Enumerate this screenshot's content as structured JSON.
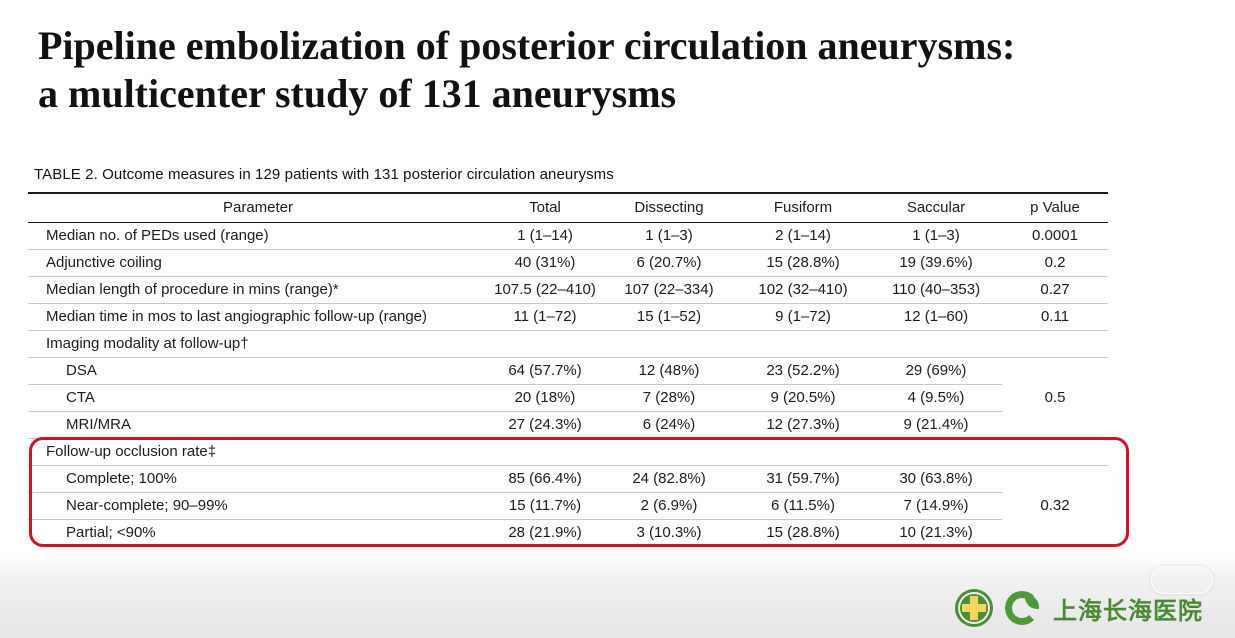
{
  "slide": {
    "title_line1": "Pipeline embolization of posterior circulation aneurysms:",
    "title_line2": "a multicenter study of 131 aneurysms"
  },
  "table": {
    "caption": "TABLE 2. Outcome measures in 129 patients with 131 posterior circulation aneurysms",
    "headers": [
      "Parameter",
      "Total",
      "Dissecting",
      "Fusiform",
      "Saccular",
      "p Value"
    ],
    "rows": [
      {
        "label": "Median no. of PEDs used (range)",
        "total": "1 (1–14)",
        "dissecting": "1 (1–3)",
        "fusiform": "2 (1–14)",
        "saccular": "1 (1–3)",
        "p": "0.0001"
      },
      {
        "label": "Adjunctive coiling",
        "total": "40 (31%)",
        "dissecting": "6 (20.7%)",
        "fusiform": "15 (28.8%)",
        "saccular": "19 (39.6%)",
        "p": "0.2"
      },
      {
        "label": "Median length of procedure in mins (range)*",
        "total": "107.5 (22–410)",
        "dissecting": "107 (22–334)",
        "fusiform": "102 (32–410)",
        "saccular": "110 (40–353)",
        "p": "0.27"
      },
      {
        "label": "Median time in mos to last angiographic follow-up (range)",
        "total": "11 (1–72)",
        "dissecting": "15 (1–52)",
        "fusiform": "9 (1–72)",
        "saccular": "12 (1–60)",
        "p": "0.11"
      }
    ],
    "imaging": {
      "label": "Imaging modality at follow-up†",
      "p": "0.5",
      "rows": [
        {
          "label": "DSA",
          "total": "64 (57.7%)",
          "dissecting": "12 (48%)",
          "fusiform": "23 (52.2%)",
          "saccular": "29 (69%)"
        },
        {
          "label": "CTA",
          "total": "20 (18%)",
          "dissecting": "7 (28%)",
          "fusiform": "9 (20.5%)",
          "saccular": "4 (9.5%)"
        },
        {
          "label": "MRI/MRA",
          "total": "27 (24.3%)",
          "dissecting": "6 (24%)",
          "fusiform": "12 (27.3%)",
          "saccular": "9 (21.4%)"
        }
      ]
    },
    "occlusion": {
      "label": "Follow-up occlusion rate‡",
      "p": "0.32",
      "rows": [
        {
          "label": "Complete; 100%",
          "total": "85 (66.4%)",
          "dissecting": "24 (82.8%)",
          "fusiform": "31 (59.7%)",
          "saccular": "30 (63.8%)"
        },
        {
          "label": "Near-complete; 90–99%",
          "total": "15 (11.7%)",
          "dissecting": "2 (6.9%)",
          "fusiform": "6 (11.5%)",
          "saccular": "7 (14.9%)"
        },
        {
          "label": "Partial; <90%",
          "total": "28 (21.9%)",
          "dissecting": "3 (10.3%)",
          "fusiform": "15 (28.8%)",
          "saccular": "10 (21.3%)"
        }
      ]
    }
  },
  "branding": {
    "hospital_name": "上海长海医院",
    "cross_icon": "medical-cross-icon",
    "leaf_icon": "leaf-logo-icon"
  },
  "colors": {
    "highlight": "#d0112b",
    "brand_green": "#4b8a34"
  }
}
